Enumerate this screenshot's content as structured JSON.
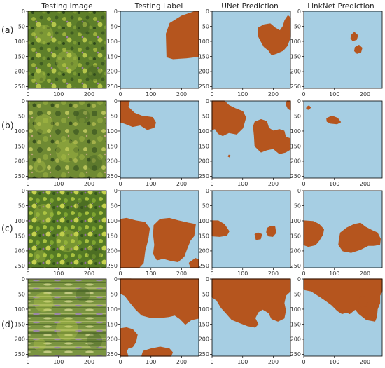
{
  "columns": [
    "Testing Image",
    "Testing Label",
    "UNet Prediction",
    "LinkNet Prediction"
  ],
  "rows": [
    "(a)",
    "(b)",
    "(c)",
    "(d)"
  ],
  "axis": {
    "x_ticks": [
      "0",
      "100",
      "200"
    ],
    "y_ticks": [
      "0",
      "50",
      "100",
      "150",
      "200",
      "250"
    ]
  },
  "colors": {
    "background_class": "#a6cee3",
    "foreground_class": "#b5551e",
    "vegetation_dark": "#3d5a22",
    "vegetation_mid": "#6d8f2e",
    "vegetation_light": "#b7c94a",
    "flower": "#9c7aa6"
  }
}
